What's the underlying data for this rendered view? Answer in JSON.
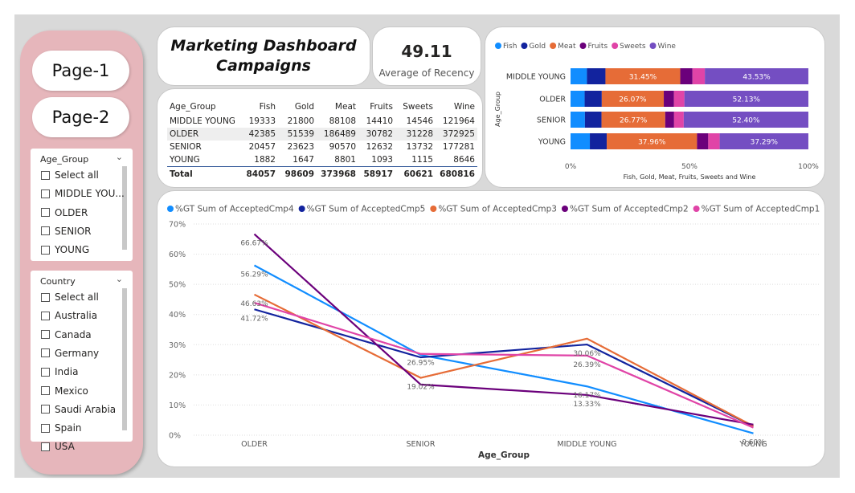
{
  "nav": {
    "buttons": [
      "Page-1",
      "Page-2"
    ]
  },
  "slicers": [
    {
      "title": "Age_Group",
      "items": [
        "Select all",
        "MIDDLE YOU...",
        "OLDER",
        "SENIOR",
        "YOUNG"
      ]
    },
    {
      "title": "Country",
      "items": [
        "Select all",
        "Australia",
        "Canada",
        "Germany",
        "India",
        "Mexico",
        "Saudi Arabia",
        "Spain",
        "USA"
      ]
    }
  ],
  "title_card": {
    "lines": [
      "Marketing Dashboard",
      "Campaigns"
    ]
  },
  "kpi": {
    "value": 49.11,
    "label": "Average of Recency"
  },
  "table": {
    "columns": [
      "Age_Group",
      "Fish",
      "Gold",
      "Meat",
      "Fruits",
      "Sweets",
      "Wine"
    ],
    "rows": [
      [
        "MIDDLE YOUNG",
        19333,
        21800,
        88108,
        14410,
        14546,
        121964
      ],
      [
        "OLDER",
        42385,
        51539,
        186489,
        30782,
        31228,
        372925
      ],
      [
        "SENIOR",
        20457,
        23623,
        90570,
        12632,
        13732,
        177281
      ],
      [
        "YOUNG",
        1882,
        1647,
        8801,
        1093,
        1115,
        8646
      ]
    ],
    "total": [
      "Total",
      84057,
      98609,
      373968,
      58917,
      60621,
      680816
    ]
  },
  "chart_data": [
    {
      "type": "bar",
      "orientation": "horizontal",
      "stacked": true,
      "categories": [
        "MIDDLE YOUNG",
        "OLDER",
        "SENIOR",
        "YOUNG"
      ],
      "series": [
        {
          "name": "Fish",
          "color": "#118dff",
          "values": [
            6.9,
            5.93,
            6.05,
            8.12
          ]
        },
        {
          "name": "Gold",
          "color": "#12239e",
          "values": [
            7.78,
            7.2,
            6.98,
            7.1
          ]
        },
        {
          "name": "Meat",
          "color": "#e66c37",
          "values": [
            31.45,
            26.07,
            26.77,
            37.96
          ],
          "value_labels": [
            "31.45%",
            "26.07%",
            "26.77%",
            "37.96%"
          ]
        },
        {
          "name": "Fruits",
          "color": "#6b007b",
          "values": [
            5.14,
            4.3,
            3.73,
            4.71
          ]
        },
        {
          "name": "Sweets",
          "color": "#e044a7",
          "values": [
            5.19,
            4.37,
            4.06,
            4.81
          ]
        },
        {
          "name": "Wine",
          "color": "#744ec2",
          "values": [
            43.53,
            52.13,
            52.4,
            37.29
          ],
          "value_labels": [
            "43.53%",
            "52.13%",
            "52.40%",
            "37.29%"
          ]
        }
      ],
      "xlim": [
        0,
        100
      ],
      "xticks": [
        {
          "value": 0,
          "label": "0%"
        },
        {
          "value": 50,
          "label": "50%"
        },
        {
          "value": 100,
          "label": "100%"
        }
      ],
      "x_label": "Fish, Gold, Meat, Fruits, Sweets and Wine",
      "y_label": "Age_Group",
      "legend": "top-left"
    },
    {
      "type": "line",
      "categories": [
        "OLDER",
        "SENIOR",
        "MIDDLE YOUNG",
        "YOUNG"
      ],
      "series": [
        {
          "name": "%GT Sum of AcceptedCmp4",
          "color": "#118dff",
          "values": [
            56.29,
            26.6,
            16.17,
            0.6
          ],
          "value_labels": [
            "56.29%",
            null,
            "16.17%",
            "0.60%"
          ]
        },
        {
          "name": "%GT Sum of AcceptedCmp5",
          "color": "#12239e",
          "values": [
            41.72,
            25.8,
            30.06,
            3.0
          ],
          "value_labels": [
            "41.72%",
            null,
            "30.06%",
            null
          ]
        },
        {
          "name": "%GT Sum of AcceptedCmp3",
          "color": "#e66c37",
          "values": [
            46.63,
            19.02,
            32.0,
            3.0
          ],
          "value_labels": [
            "46.63%",
            "19.02%",
            null,
            null
          ]
        },
        {
          "name": "%GT Sum of AcceptedCmp2",
          "color": "#6b007b",
          "values": [
            66.67,
            16.8,
            13.33,
            3.5
          ],
          "value_labels": [
            "66.67%",
            null,
            "13.33%",
            null
          ]
        },
        {
          "name": "%GT Sum of AcceptedCmp1",
          "color": "#e044a7",
          "values": [
            43.9,
            26.95,
            26.39,
            2.5
          ],
          "value_labels": [
            null,
            "26.95%",
            "26.39%",
            null
          ]
        }
      ],
      "ylim": [
        0,
        70
      ],
      "yticks": [
        {
          "value": 0,
          "label": "0%"
        },
        {
          "value": 10,
          "label": "10%"
        },
        {
          "value": 20,
          "label": "20%"
        },
        {
          "value": 30,
          "label": "30%"
        },
        {
          "value": 40,
          "label": "40%"
        },
        {
          "value": 50,
          "label": "50%"
        },
        {
          "value": 60,
          "label": "60%"
        },
        {
          "value": 70,
          "label": "70%"
        }
      ],
      "grid": true,
      "x_label": "Age_Group",
      "legend": "top-left"
    }
  ]
}
